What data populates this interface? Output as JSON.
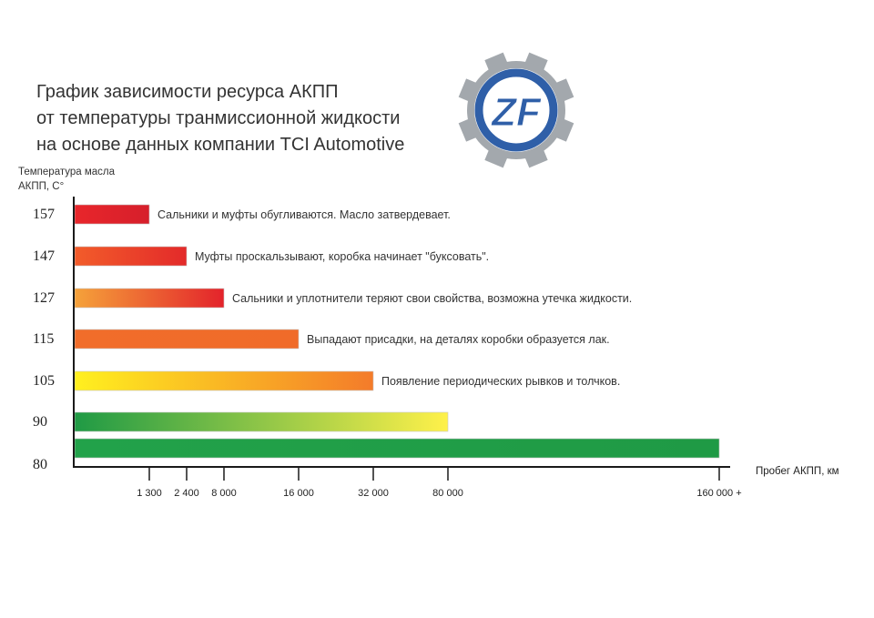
{
  "chart_data": {
    "type": "bar",
    "orientation": "horizontal",
    "title_lines": [
      "График зависимости ресурса АКПП",
      "от температуры транмиссионной жидкости",
      "на основе данных компании TCI Automotive"
    ],
    "ylabel_lines": [
      "Температура масла",
      "АКПП, С°"
    ],
    "xlabel": "Пробег АКПП, км",
    "x_ticks": [
      "1 300",
      "2 400",
      "8 000",
      "16 000",
      "32 000",
      "80 000",
      "160 000 +"
    ],
    "bars": [
      {
        "temperature": "157",
        "mileage": 1300,
        "annotation": "Сальники и муфты обугливаются. Масло затвердевает.",
        "colors": [
          "#e8262b",
          "#d61f2b"
        ]
      },
      {
        "temperature": "147",
        "mileage": 2400,
        "annotation": "Муфты проскальзывают, коробка начинает \"буксовать\".",
        "colors": [
          "#f25c2a",
          "#e32a2a"
        ]
      },
      {
        "temperature": "127",
        "mileage": 8000,
        "annotation": "Сальники и уплотнители теряют свои свойства, возможна утечка жидкости.",
        "colors": [
          "#f5a23a",
          "#e3232b"
        ]
      },
      {
        "temperature": "115",
        "mileage": 16000,
        "annotation": "Выпадают присадки, на деталях коробки образуется лак.",
        "colors": [
          "#f16d2a",
          "#f06b29"
        ]
      },
      {
        "temperature": "105",
        "mileage": 32000,
        "annotation": "Появление периодических рывков и толчков.",
        "colors": [
          "#fff01f",
          "#f47b2a"
        ]
      },
      {
        "temperature": "90",
        "mileage": 80000,
        "annotation": "",
        "colors": [
          "#1f9a45",
          "#fff14a"
        ]
      },
      {
        "temperature": "80",
        "mileage": 160000,
        "annotation": "",
        "colors": [
          "#22a24a",
          "#1f9a45"
        ]
      }
    ],
    "legend": "none",
    "grid": false
  },
  "logo": {
    "text": "ZF",
    "ring_color": "#2f5fa8",
    "gear_color": "#9aa0a6"
  }
}
